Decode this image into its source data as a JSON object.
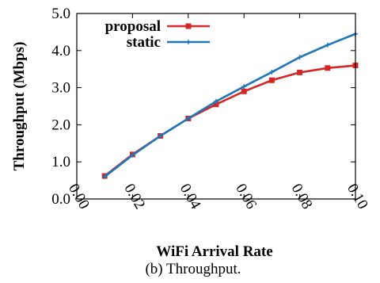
{
  "chart_data": {
    "type": "line",
    "xlabel": "WiFi Arrival Rate",
    "ylabel": "Throughput (Mbps)",
    "xlim": [
      0.0,
      0.1
    ],
    "ylim": [
      0.0,
      5.0
    ],
    "x_ticks": [
      0.0,
      0.02,
      0.04,
      0.06,
      0.08,
      0.1
    ],
    "x_tick_labels": [
      "0.00",
      "0.02",
      "0.04",
      "0.06",
      "0.08",
      "0.10"
    ],
    "y_ticks": [
      0.0,
      1.0,
      2.0,
      3.0,
      4.0,
      5.0
    ],
    "y_tick_labels": [
      "0.0",
      "1.0",
      "2.0",
      "3.0",
      "4.0",
      "5.0"
    ],
    "grid": false,
    "legend_position": "top-left",
    "series": [
      {
        "name": "proposal",
        "color": "#d62728",
        "marker": "square",
        "x": [
          0.01,
          0.02,
          0.03,
          0.04,
          0.05,
          0.06,
          0.07,
          0.08,
          0.09,
          0.1
        ],
        "y": [
          0.62,
          1.2,
          1.7,
          2.17,
          2.55,
          2.9,
          3.2,
          3.41,
          3.53,
          3.6
        ]
      },
      {
        "name": "static",
        "color": "#1f77b4",
        "marker": "plus",
        "x": [
          0.01,
          0.02,
          0.03,
          0.04,
          0.05,
          0.06,
          0.07,
          0.08,
          0.09,
          0.1
        ],
        "y": [
          0.6,
          1.18,
          1.7,
          2.17,
          2.63,
          3.03,
          3.42,
          3.82,
          4.15,
          4.45
        ]
      }
    ]
  },
  "caption": "(b) Throughput."
}
